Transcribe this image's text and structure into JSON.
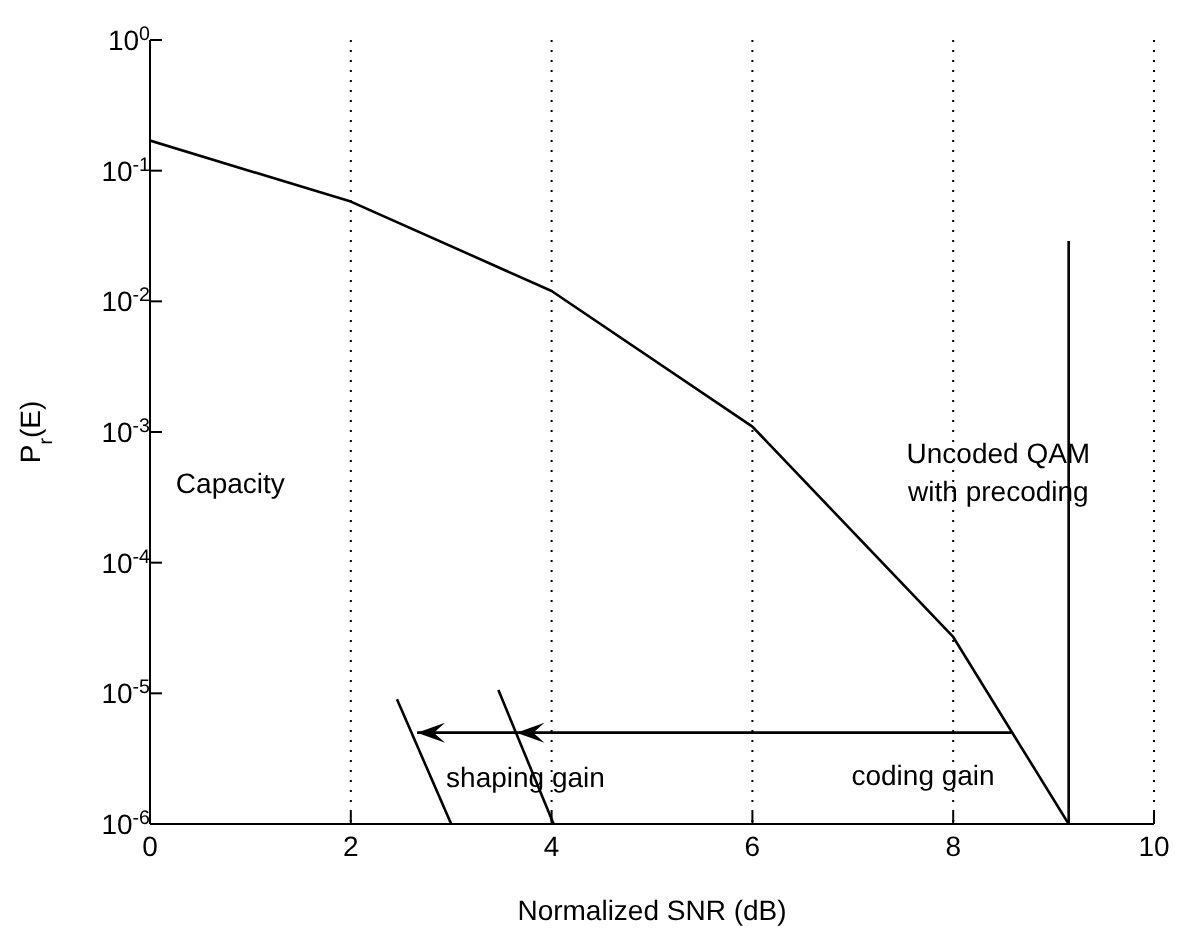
{
  "chart_data": {
    "type": "line",
    "xlabel": "Normalized SNR (dB)",
    "ylabel": "P$_{r}$(E)",
    "log": "y",
    "grid": "x",
    "marker": "none",
    "line_style": "solid",
    "xlim": [
      0,
      10
    ],
    "xticks": [
      0,
      2,
      4,
      6,
      8,
      10
    ],
    "ylim": [
      1e-06,
      1
    ],
    "yticks": [
      {
        "value": 1e-06,
        "label": "10$^{-6}$"
      },
      {
        "value": 1e-05,
        "label": "10$^{-5}$"
      },
      {
        "value": 0.0001,
        "label": "10$^{-4}$"
      },
      {
        "value": 0.001,
        "label": "10$^{-3}$"
      },
      {
        "value": 0.01,
        "label": "10$^{-2}$"
      },
      {
        "value": 0.1,
        "label": "10$^{-1}$"
      },
      {
        "value": 1,
        "label": "10$^{0}$"
      }
    ],
    "series": [
      {
        "color": "#000000",
        "x": [
          0,
          2,
          4,
          6,
          8,
          9.15
        ],
        "values": [
          0.17,
          0.058,
          0.012,
          0.0011,
          2.7e-05,
          1e-06
        ]
      },
      {
        "color": "#000000",
        "x": [
          9.15,
          9.15
        ],
        "values": [
          1e-06,
          0.029
        ]
      },
      {
        "color": "#000000",
        "x": [
          2.46,
          3.0
        ],
        "values": [
          9e-06,
          1e-06
        ]
      },
      {
        "color": "#000000",
        "x": [
          3.47,
          4.02
        ],
        "values": [
          1.06e-05,
          1e-06
        ]
      }
    ],
    "annotations": [
      "Capacity",
      "Uncoded QAM\nwith precoding",
      {
        "text": "shaping gain",
        "x": 3.74,
        "y": 5e-06
      },
      "coding gain"
    ]
  }
}
